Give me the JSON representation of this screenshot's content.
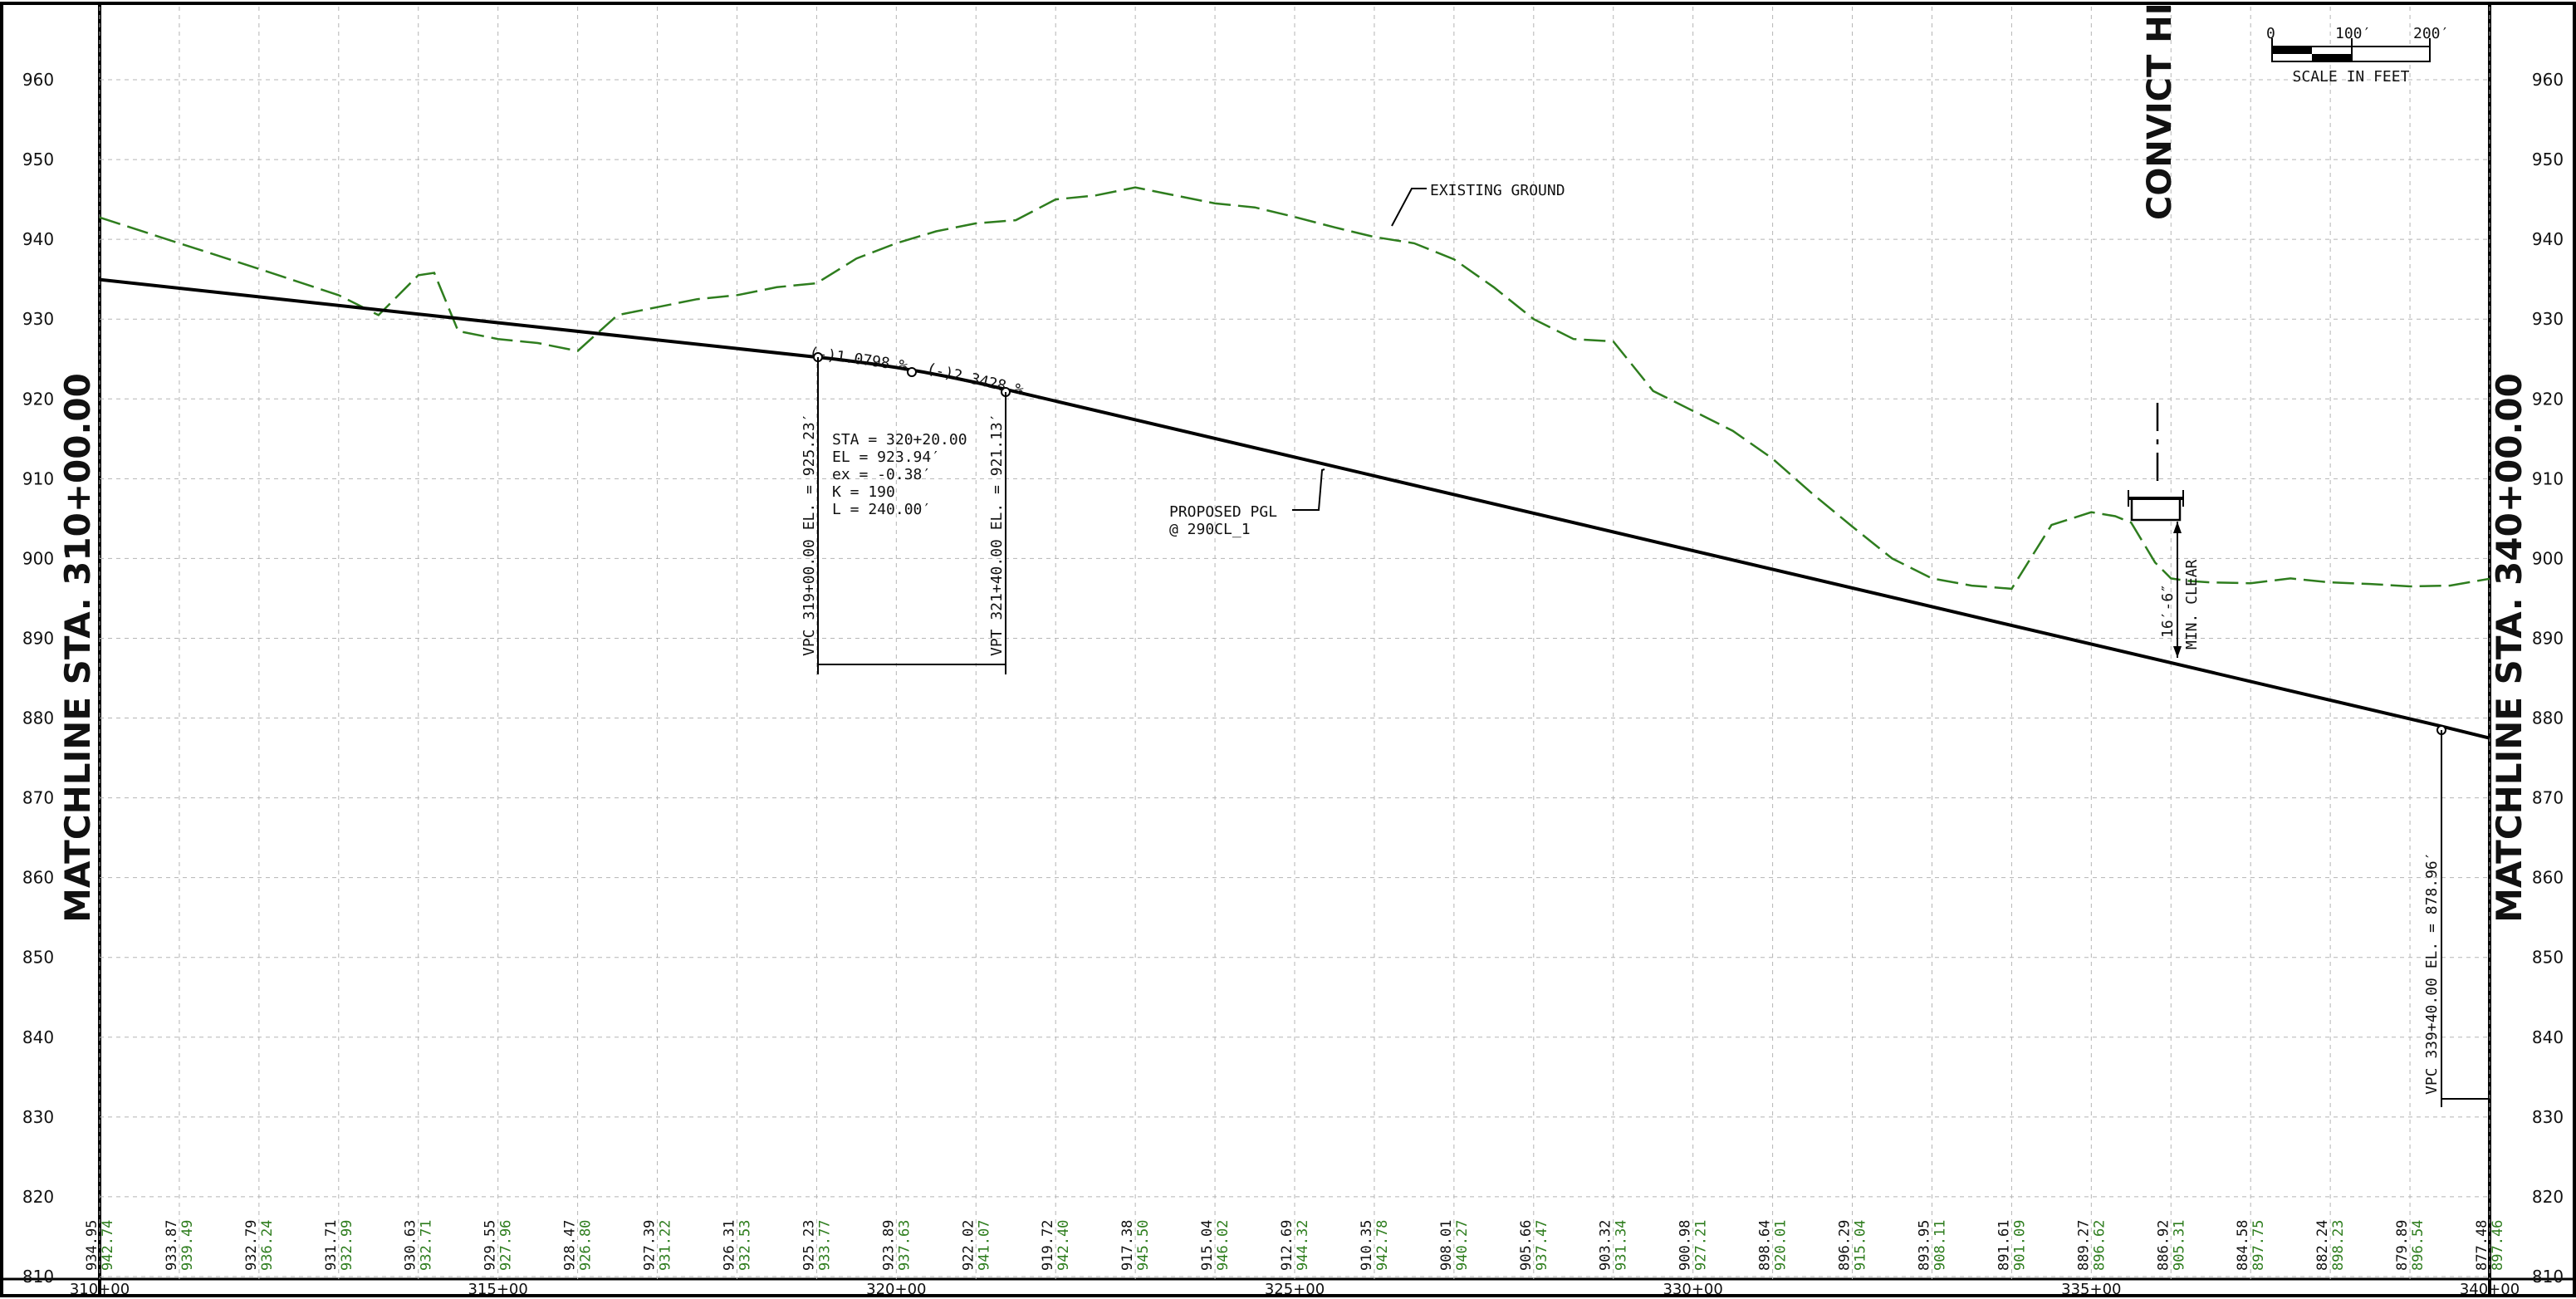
{
  "colors": {
    "grid": "#b5b5b5",
    "existing_ground": "#2e7d1e",
    "proposed": "#000000",
    "border": "#000000"
  },
  "matchline_left": "MATCHLINE STA. 310+00.00",
  "matchline_right": "MATCHLINE STA. 340+00.00",
  "road_label": "CONVICT HILL RD.",
  "scale_bar": {
    "tick_0": "0",
    "tick_100": "100′",
    "tick_200": "200′",
    "caption": "SCALE IN FEET"
  },
  "existing_ground_label": "EXISTING GROUND",
  "proposed_pgl_label": "PROPOSED PGL",
  "proposed_pgl_sub": "@ 290CL_1",
  "grade_in": "(-)1.0798 %",
  "grade_out": "(-)2.3428 %",
  "curve_data": [
    "STA  = 320+20.00",
    "EL   = 923.94′",
    "ex   = -0.38′",
    "K    = 190",
    "L    = 240.00′"
  ],
  "vpc_label": "VPC 319+00.00 EL. = 925.23′",
  "vpt_label": "VPT 321+40.00 EL. = 921.13′",
  "vpc2_label": "VPC 339+40.00 EL. = 878.96′",
  "clearance_value": "16′-6″",
  "clearance_text": "MIN. CLEAR",
  "chart_data": {
    "type": "line",
    "xlabel": "",
    "ylabel": "",
    "xlim": [
      31000,
      34000
    ],
    "ylim": [
      810,
      960
    ],
    "y_ticks": [
      820,
      830,
      840,
      850,
      860,
      870,
      880,
      890,
      900,
      910,
      920,
      930,
      940,
      950,
      960
    ],
    "x_ticks": [
      "310+00",
      "315+00",
      "320+00",
      "325+00",
      "330+00",
      "335+00",
      "340+00"
    ],
    "series": [
      {
        "name": "PROPOSED PGL",
        "x": [
          31000,
          31900,
          32020,
          32140,
          33940,
          34000
        ],
        "y": [
          934.95,
          925.23,
          923.94,
          921.13,
          878.96,
          877.48
        ]
      },
      {
        "name": "EXISTING GROUND",
        "x": [
          31000,
          31100,
          31200,
          31300,
          31350,
          31400,
          31420,
          31450,
          31500,
          31550,
          31600,
          31650,
          31700,
          31750,
          31800,
          31850,
          31900,
          31950,
          32000,
          32050,
          32100,
          32150,
          32200,
          32250,
          32300,
          32350,
          32400,
          32450,
          32500,
          32550,
          32600,
          32650,
          32700,
          32750,
          32800,
          32850,
          32900,
          32950,
          33000,
          33050,
          33100,
          33150,
          33200,
          33250,
          33300,
          33350,
          33400,
          33450,
          33500,
          33530,
          33550,
          33580,
          33600,
          33620,
          33650,
          33700,
          33750,
          33800,
          33850,
          33900,
          33950,
          34000
        ],
        "y": [
          942.74,
          939.5,
          936.3,
          933.0,
          930.5,
          935.5,
          935.8,
          928.5,
          927.5,
          927.0,
          926.0,
          930.5,
          931.5,
          932.5,
          933.0,
          934.0,
          934.5,
          937.6,
          939.5,
          941.0,
          942.0,
          942.4,
          945.0,
          945.5,
          946.5,
          945.5,
          944.5,
          944.0,
          942.8,
          941.5,
          940.3,
          939.5,
          937.5,
          934.0,
          930.0,
          927.5,
          927.2,
          921.0,
          918.5,
          916.0,
          912.5,
          908.1,
          904.0,
          900.0,
          897.5,
          896.6,
          896.2,
          904.2,
          905.8,
          905.3,
          904.5,
          899.5,
          897.5,
          897.2,
          897.0,
          896.9,
          897.5,
          897.0,
          896.8,
          896.5,
          896.6,
          897.46
        ]
      }
    ],
    "profile_values": [
      {
        "sta": "310+00",
        "proposed": "934.95",
        "existing": "942.74"
      },
      {
        "sta": "311+00",
        "proposed": "933.87",
        "existing": "939.49"
      },
      {
        "sta": "312+00",
        "proposed": "932.79",
        "existing": "936.24"
      },
      {
        "sta": "313+00",
        "proposed": "931.71",
        "existing": "932.99"
      },
      {
        "sta": "314+00",
        "proposed": "930.63",
        "existing": "932.71"
      },
      {
        "sta": "315+00",
        "proposed": "929.55",
        "existing": "927.96"
      },
      {
        "sta": "316+00",
        "proposed": "928.47",
        "existing": "926.80"
      },
      {
        "sta": "317+00",
        "proposed": "927.39",
        "existing": "931.22"
      },
      {
        "sta": "318+00",
        "proposed": "926.31",
        "existing": "932.53"
      },
      {
        "sta": "319+00",
        "proposed": "925.23",
        "existing": "933.77"
      },
      {
        "sta": "320+00",
        "proposed": "923.89",
        "existing": "937.63"
      },
      {
        "sta": "321+00",
        "proposed": "922.02",
        "existing": "941.07"
      },
      {
        "sta": "322+00",
        "proposed": "919.72",
        "existing": "942.40"
      },
      {
        "sta": "323+00",
        "proposed": "917.38",
        "existing": "945.50"
      },
      {
        "sta": "324+00",
        "proposed": "915.04",
        "existing": "946.02"
      },
      {
        "sta": "325+00",
        "proposed": "912.69",
        "existing": "944.32"
      },
      {
        "sta": "326+00",
        "proposed": "910.35",
        "existing": "942.78"
      },
      {
        "sta": "327+00",
        "proposed": "908.01",
        "existing": "940.27"
      },
      {
        "sta": "328+00",
        "proposed": "905.66",
        "existing": "937.47"
      },
      {
        "sta": "329+00",
        "proposed": "903.32",
        "existing": "931.34"
      },
      {
        "sta": "330+00",
        "proposed": "900.98",
        "existing": "927.21"
      },
      {
        "sta": "331+00",
        "proposed": "898.64",
        "existing": "920.01"
      },
      {
        "sta": "332+00",
        "proposed": "896.29",
        "existing": "915.04"
      },
      {
        "sta": "333+00",
        "proposed": "893.95",
        "existing": "908.11"
      },
      {
        "sta": "334+00",
        "proposed": "891.61",
        "existing": "901.09"
      },
      {
        "sta": "335+00",
        "proposed": "889.27",
        "existing": "896.62"
      },
      {
        "sta": "336+00",
        "proposed": "886.92",
        "existing": "905.31"
      },
      {
        "sta": "337+00",
        "proposed": "884.58",
        "existing": "897.75"
      },
      {
        "sta": "338+00",
        "proposed": "882.24",
        "existing": "898.23"
      },
      {
        "sta": "339+00",
        "proposed": "879.89",
        "existing": "896.54"
      },
      {
        "sta": "340+00",
        "proposed": "877.48",
        "existing": "897.46"
      }
    ],
    "grid": true
  }
}
